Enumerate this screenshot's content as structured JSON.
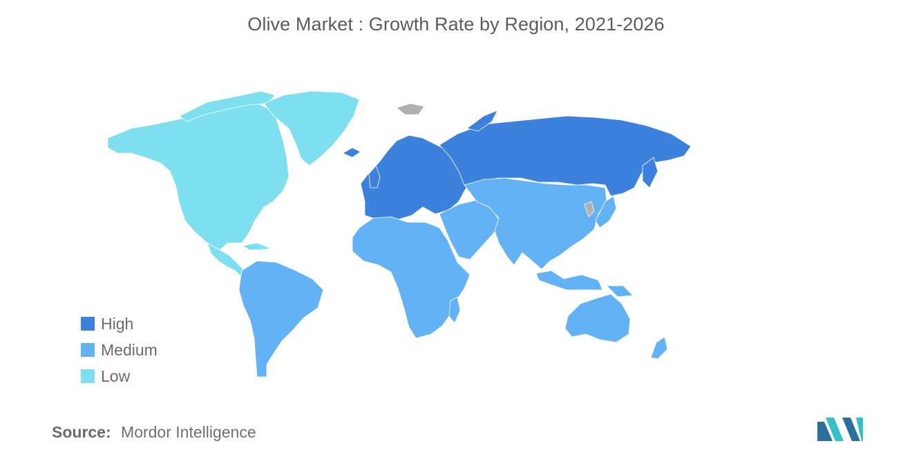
{
  "title": "Olive Market : Growth Rate by Region, 2021-2026",
  "colors": {
    "high": "#3c82dc",
    "medium": "#62b2f5",
    "low": "#7ee0ee",
    "no_data": "#b0b0b0",
    "logo_dark": "#2d6f9c",
    "logo_light": "#35c0c8"
  },
  "legend": [
    {
      "label": "High",
      "level": "high"
    },
    {
      "label": "Medium",
      "level": "medium"
    },
    {
      "label": "Low",
      "level": "low"
    }
  ],
  "regions": {
    "north_america": "low",
    "greenland": "low",
    "europe": "high",
    "russia": "high",
    "south_america": "medium",
    "africa": "medium",
    "middle_east": "medium",
    "central_asia": "medium",
    "south_asia": "medium",
    "east_asia": "medium",
    "southeast_asia": "medium",
    "oceania": "medium",
    "svalbard": "no_data",
    "korea": "no_data"
  },
  "source": {
    "key": "Source:",
    "value": "Mordor Intelligence"
  },
  "logo": {
    "icon": "mordor-intelligence-logo"
  }
}
